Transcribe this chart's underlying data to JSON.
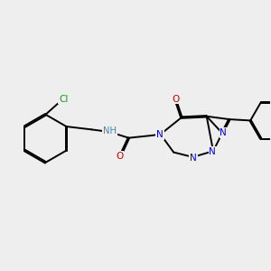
{
  "background_color": "#eeeeee",
  "line_color": "#000000",
  "atom_colors": {
    "N": "#0000dd",
    "O": "#cc0000",
    "Cl": "#00aa00",
    "NH": "#4488aa",
    "C": "#000000"
  },
  "lw": 1.4
}
